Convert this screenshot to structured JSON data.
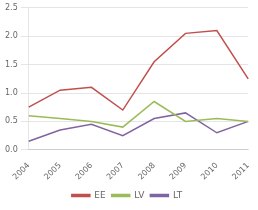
{
  "chart_data": {
    "type": "line",
    "categories": [
      "2004",
      "2005",
      "2006",
      "2007",
      "2008",
      "2009",
      "2010",
      "2011"
    ],
    "series": [
      {
        "name": "EE",
        "color": "#C0504D",
        "values": [
          0.75,
          1.05,
          1.1,
          0.7,
          1.55,
          2.05,
          2.1,
          1.25
        ]
      },
      {
        "name": "LV",
        "color": "#9BBB59",
        "values": [
          0.6,
          0.55,
          0.5,
          0.4,
          0.85,
          0.5,
          0.55,
          0.5
        ]
      },
      {
        "name": "LT",
        "color": "#8064A2",
        "values": [
          0.15,
          0.35,
          0.45,
          0.25,
          0.55,
          0.65,
          0.3,
          0.5
        ]
      }
    ],
    "ylim": [
      0,
      2.5
    ],
    "yticks": [
      {
        "value": 0,
        "label": "0.0"
      },
      0.5,
      {
        "value": 1,
        "label": "1.0"
      },
      1.5,
      {
        "value": 2,
        "label": "2.0"
      },
      2.5
    ],
    "grid": "y",
    "legend": "bottom"
  }
}
